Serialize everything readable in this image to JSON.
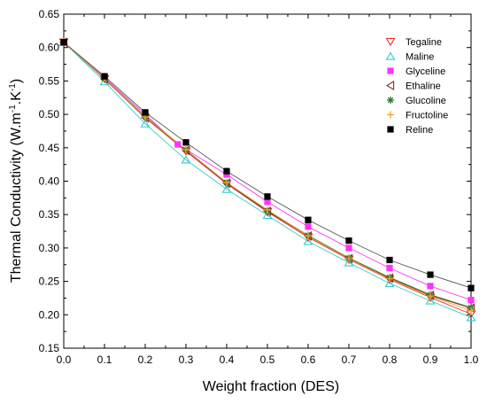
{
  "chart_data": {
    "type": "scatter",
    "title": "",
    "xlabel": "Weight fraction (DES)",
    "ylabel_main": "Thermal Conductivity (W.m",
    "ylabel_sup1": "-1",
    "ylabel_mid": ".K",
    "ylabel_sup2": "-1",
    "ylabel_end": ")",
    "xlim": [
      0.0,
      1.0
    ],
    "ylim": [
      0.15,
      0.65
    ],
    "xticks": [
      "0.0",
      "0.1",
      "0.2",
      "0.3",
      "0.4",
      "0.5",
      "0.6",
      "0.7",
      "0.8",
      "0.9",
      "1.0"
    ],
    "yticks": [
      "0.15",
      "0.20",
      "0.25",
      "0.30",
      "0.35",
      "0.40",
      "0.45",
      "0.50",
      "0.55",
      "0.60",
      "0.65"
    ],
    "legend_position": "top-right",
    "series": [
      {
        "name": "Tegaline",
        "marker": "triangle-down",
        "color": "#e8312a",
        "line_color": "#e8312a",
        "x": [
          0.0,
          0.1,
          0.2,
          0.3,
          0.4,
          0.5,
          0.6,
          0.7,
          0.8,
          0.9,
          1.0
        ],
        "values": [
          0.608,
          0.553,
          0.495,
          0.445,
          0.396,
          0.354,
          0.316,
          0.283,
          0.253,
          0.226,
          0.201
        ]
      },
      {
        "name": "Maline",
        "marker": "triangle-up",
        "color": "#33cccc",
        "line_color": "#33cccc",
        "x": [
          0.0,
          0.1,
          0.2,
          0.3,
          0.4,
          0.5,
          0.6,
          0.7,
          0.8,
          0.9,
          1.0
        ],
        "values": [
          0.608,
          0.549,
          0.486,
          0.432,
          0.388,
          0.349,
          0.31,
          0.278,
          0.247,
          0.221,
          0.196
        ]
      },
      {
        "name": "Glyceline",
        "marker": "square",
        "color": "#ff33ff",
        "line_color": "#ff33ff",
        "x": [
          0.0,
          0.1,
          0.2,
          0.28,
          0.4,
          0.5,
          0.6,
          0.7,
          0.8,
          0.9,
          1.0
        ],
        "values": [
          0.608,
          0.555,
          0.5,
          0.455,
          0.41,
          0.369,
          0.332,
          0.3,
          0.27,
          0.243,
          0.222
        ]
      },
      {
        "name": "Ethaline",
        "marker": "triangle-left",
        "color": "#8b2e2e",
        "line_color": "#8b2e2e",
        "x": [
          0.0,
          0.1,
          0.2,
          0.3,
          0.4,
          0.5,
          0.6,
          0.7,
          0.8,
          0.9,
          1.0
        ],
        "values": [
          0.608,
          0.553,
          0.495,
          0.446,
          0.397,
          0.355,
          0.318,
          0.284,
          0.255,
          0.229,
          0.21
        ]
      },
      {
        "name": "Glucoline",
        "marker": "asterisk",
        "color": "#2e7d2e",
        "line_color": "#2e7d2e",
        "x": [
          0.0,
          0.1,
          0.2,
          0.3,
          0.4,
          0.5,
          0.6,
          0.7,
          0.8,
          0.9,
          1.0
        ],
        "values": [
          0.608,
          0.554,
          0.497,
          0.447,
          0.398,
          0.356,
          0.319,
          0.285,
          0.256,
          0.23,
          0.211
        ]
      },
      {
        "name": "Fructoline",
        "marker": "plus",
        "color": "#f0a030",
        "line_color": "#f0a030",
        "x": [
          0.0,
          0.1,
          0.2,
          0.3,
          0.4,
          0.5,
          0.6,
          0.7,
          0.8,
          0.9,
          1.0
        ],
        "values": [
          0.608,
          0.554,
          0.496,
          0.447,
          0.398,
          0.357,
          0.318,
          0.284,
          0.254,
          0.228,
          0.206
        ]
      },
      {
        "name": "Reline",
        "marker": "square",
        "color": "#000000",
        "line_color": "#555555",
        "x": [
          0.0,
          0.1,
          0.2,
          0.3,
          0.4,
          0.5,
          0.6,
          0.7,
          0.8,
          0.9,
          1.0
        ],
        "values": [
          0.608,
          0.557,
          0.503,
          0.458,
          0.415,
          0.377,
          0.342,
          0.311,
          0.282,
          0.26,
          0.24
        ]
      }
    ]
  }
}
